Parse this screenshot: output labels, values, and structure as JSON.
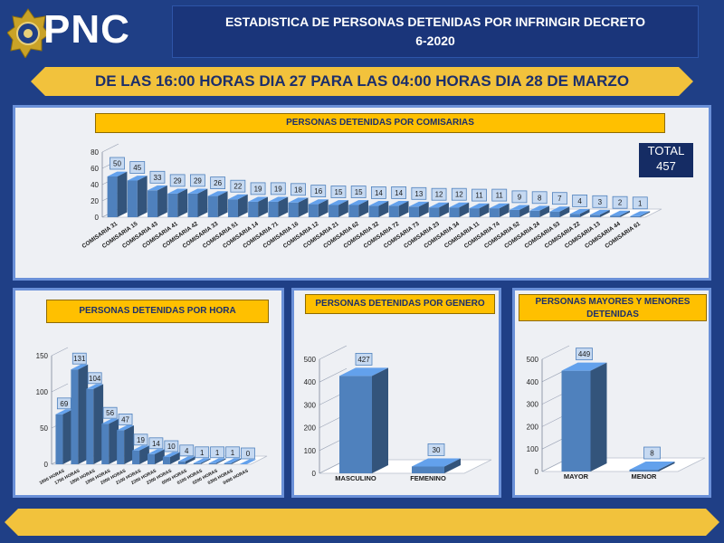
{
  "header": {
    "logo_text": "PNC",
    "title_line1": "ESTADISTICA  DE PERSONAS DETENIDAS  POR INFRINGIR  DECRETO",
    "title_line2": "6-2020",
    "date_banner": "DE LAS 16:00  HORAS DIA 27 PARA LAS 04:00  HORAS DIA 28 DE MARZO"
  },
  "total": {
    "label": "TOTAL",
    "value": "457"
  },
  "colors": {
    "bar": "#4f81bd",
    "bar_dark": "#2f5597",
    "panel_border": "#6a90d8",
    "title_bg": "#ffc000",
    "banner": "#f2c23c"
  },
  "chart_data": [
    {
      "type": "bar",
      "title": "PERSONAS  DETENIDAS  POR COMISARIAS",
      "categories": [
        "COMISARIA 31",
        "COMISARIA 15",
        "COMISARIA 43",
        "COMISARIA 41",
        "COMISARIA 42",
        "COMISARIA 33",
        "COMISARIA 51",
        "COMISARIA 14",
        "COMISARIA 71",
        "COMISARIA 16",
        "COMISARIA 12",
        "COMISARIA 21",
        "COMISARIA 62",
        "COMISARIA 32",
        "COMISARIA 72",
        "COMISARIA 73",
        "COMISARIA 23",
        "COMISARIA 34",
        "COMISARIA 11",
        "COMISARIA 74",
        "COMISARIA 52",
        "COMISARIA 24",
        "COMISARIA 53",
        "COMISARIA 22",
        "COMISARIA 13",
        "COMISARIA 44",
        "COMISARIA 61"
      ],
      "values": [
        50,
        45,
        33,
        29,
        29,
        26,
        22,
        19,
        19,
        18,
        16,
        15,
        15,
        14,
        14,
        13,
        12,
        12,
        11,
        11,
        9,
        8,
        7,
        4,
        3,
        2,
        1
      ],
      "yticks": [
        0,
        20,
        40,
        60,
        80
      ],
      "ylim": [
        0,
        80
      ]
    },
    {
      "type": "bar",
      "title": "PERSONAS  DETENIDAS POR HORA",
      "categories": [
        "1600 HORAS",
        "1700 HORAS",
        "1800 HORAS",
        "1900 HORAS",
        "2000 HORAS",
        "2100 HORAS",
        "2200 HORAS",
        "2300 HORAS",
        "0000 HORAS",
        "0100 HORAS",
        "0200 HORAS",
        "0300 HORAS",
        "0400 HORAS"
      ],
      "values": [
        69,
        131,
        104,
        56,
        47,
        19,
        14,
        10,
        4,
        1,
        1,
        1,
        0
      ],
      "yticks": [
        0,
        50,
        100,
        150
      ],
      "ylim": [
        0,
        150
      ]
    },
    {
      "type": "bar",
      "title": "PERSONAS DETENIDAS POR GENERO",
      "categories": [
        "MASCULINO",
        "FEMENINO"
      ],
      "values": [
        427,
        30
      ],
      "yticks": [
        0,
        100,
        200,
        300,
        400,
        500
      ],
      "ylim": [
        0,
        500
      ]
    },
    {
      "type": "bar",
      "title": "PERSONAS  MAYORES  Y MENORES DETENIDAS",
      "title_line1": "PERSONAS  MAYORES  Y MENORES",
      "title_line2": "DETENIDAS",
      "categories": [
        "MAYOR",
        "MENOR"
      ],
      "values": [
        449,
        8
      ],
      "yticks": [
        0,
        100,
        200,
        300,
        400,
        500
      ],
      "ylim": [
        0,
        500
      ]
    }
  ]
}
